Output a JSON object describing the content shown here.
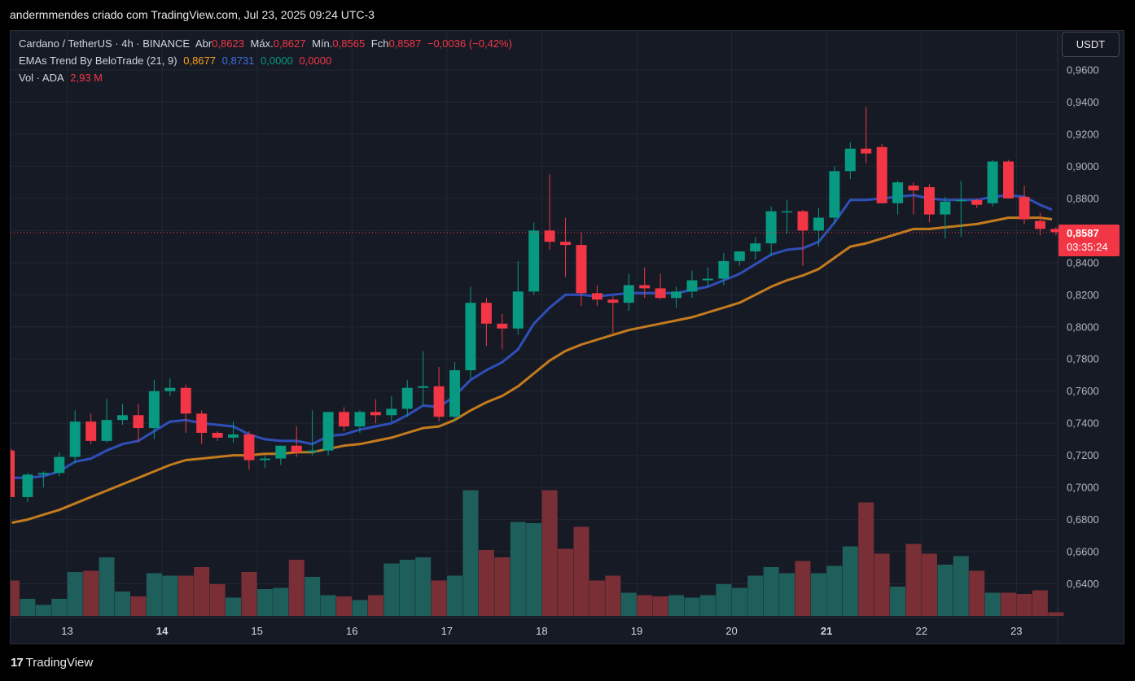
{
  "header": {
    "caption": "andermmendes criado com TradingView.com, Jul 23, 2025 09:24 UTC-3"
  },
  "legend": {
    "symbol": "Cardano / TetherUS · 4h · BINANCE",
    "open_label": "Abr",
    "open": "0,8623",
    "high_label": "Máx.",
    "high": "0,8627",
    "low_label": "Mín.",
    "low": "0,8565",
    "close_label": "Fch",
    "close": "0,8587",
    "change": "−0,0036 (−0,42%)",
    "ema_name": "EMAs Trend By BeloTrade (21, 9)",
    "ema_values": [
      "0,8677",
      "0,8731",
      "0,0000",
      "0,0000"
    ],
    "vol_name": "Vol · ADA",
    "vol_value": "2,93 M"
  },
  "price_axis": {
    "unit": "USDT",
    "last_price": "0,8587",
    "countdown": "03:35:24"
  },
  "brand": {
    "name": "TradingView",
    "logo": "17"
  },
  "colors": {
    "up": "#089981",
    "down": "#f23645",
    "vol_up": "#1f5f5b",
    "vol_down": "#7a2e36",
    "ema_fast": "#2f4fb8",
    "ema_slow": "#c47b1e",
    "ema_v1": "#f7a21b",
    "ema_v2": "#3f6fe0",
    "ema_v3": "#089981",
    "ema_v4": "#f23645",
    "background": "#161a25",
    "grid": "#232733"
  },
  "chart_data": {
    "type": "candlestick",
    "timeframe": "4h",
    "y_ticks": [
      "0,6400",
      "0,6600",
      "0,6800",
      "0,7000",
      "0,7200",
      "0,7400",
      "0,7600",
      "0,7800",
      "0,8000",
      "0,8200",
      "0,8400",
      "0,8600",
      "0,8800",
      "0,9000",
      "0,9200",
      "0,9400",
      "0,9600"
    ],
    "ylim": [
      0.6245,
      0.9665
    ],
    "x_labels": [
      {
        "label": "13",
        "index": 3.5
      },
      {
        "label": "14",
        "index": 9.5
      },
      {
        "label": "15",
        "index": 15.5
      },
      {
        "label": "16",
        "index": 21.5
      },
      {
        "label": "17",
        "index": 27.5
      },
      {
        "label": "18",
        "index": 33.5
      },
      {
        "label": "19",
        "index": 39.5
      },
      {
        "label": "20",
        "index": 45.5
      },
      {
        "label": "21",
        "index": 51.5
      },
      {
        "label": "22",
        "index": 57.5
      },
      {
        "label": "23",
        "index": 63.5
      }
    ],
    "candles": [
      [
        0.723,
        0.724,
        0.694,
        0.694,
        2.9
      ],
      [
        0.694,
        0.709,
        0.691,
        0.708,
        1.4
      ],
      [
        0.708,
        0.71,
        0.7,
        0.709,
        0.9
      ],
      [
        0.709,
        0.722,
        0.707,
        0.719,
        1.4
      ],
      [
        0.719,
        0.748,
        0.715,
        0.741,
        3.6
      ],
      [
        0.741,
        0.746,
        0.727,
        0.729,
        3.7
      ],
      [
        0.729,
        0.755,
        0.728,
        0.742,
        4.8
      ],
      [
        0.742,
        0.752,
        0.739,
        0.745,
        2.0
      ],
      [
        0.745,
        0.752,
        0.728,
        0.737,
        1.6
      ],
      [
        0.737,
        0.767,
        0.73,
        0.76,
        3.5
      ],
      [
        0.76,
        0.768,
        0.757,
        0.762,
        3.3
      ],
      [
        0.762,
        0.764,
        0.734,
        0.746,
        3.3
      ],
      [
        0.746,
        0.748,
        0.727,
        0.734,
        4.0
      ],
      [
        0.734,
        0.735,
        0.729,
        0.731,
        2.6
      ],
      [
        0.731,
        0.741,
        0.728,
        0.733,
        1.5
      ],
      [
        0.733,
        0.735,
        0.711,
        0.717,
        3.6
      ],
      [
        0.717,
        0.72,
        0.712,
        0.718,
        2.2
      ],
      [
        0.718,
        0.726,
        0.714,
        0.726,
        2.3
      ],
      [
        0.726,
        0.738,
        0.719,
        0.722,
        4.6
      ],
      [
        0.722,
        0.748,
        0.72,
        0.723,
        3.2
      ],
      [
        0.723,
        0.747,
        0.72,
        0.747,
        1.7
      ],
      [
        0.747,
        0.75,
        0.735,
        0.738,
        1.6
      ],
      [
        0.738,
        0.748,
        0.734,
        0.747,
        1.3
      ],
      [
        0.747,
        0.755,
        0.74,
        0.745,
        1.7
      ],
      [
        0.745,
        0.757,
        0.741,
        0.749,
        4.3
      ],
      [
        0.749,
        0.767,
        0.744,
        0.762,
        4.6
      ],
      [
        0.762,
        0.785,
        0.751,
        0.763,
        4.8
      ],
      [
        0.763,
        0.775,
        0.741,
        0.744,
        2.9
      ],
      [
        0.744,
        0.778,
        0.741,
        0.773,
        3.3
      ],
      [
        0.773,
        0.825,
        0.768,
        0.815,
        10.3
      ],
      [
        0.815,
        0.818,
        0.788,
        0.802,
        5.4
      ],
      [
        0.802,
        0.808,
        0.786,
        0.799,
        4.8
      ],
      [
        0.799,
        0.841,
        0.795,
        0.822,
        7.7
      ],
      [
        0.822,
        0.865,
        0.82,
        0.86,
        7.6
      ],
      [
        0.86,
        0.895,
        0.848,
        0.853,
        10.3
      ],
      [
        0.853,
        0.868,
        0.831,
        0.851,
        5.5
      ],
      [
        0.851,
        0.859,
        0.813,
        0.821,
        7.3
      ],
      [
        0.821,
        0.826,
        0.813,
        0.817,
        2.9
      ],
      [
        0.817,
        0.819,
        0.796,
        0.815,
        3.3
      ],
      [
        0.815,
        0.833,
        0.81,
        0.826,
        1.9
      ],
      [
        0.826,
        0.837,
        0.818,
        0.824,
        1.7
      ],
      [
        0.824,
        0.833,
        0.817,
        0.818,
        1.6
      ],
      [
        0.818,
        0.825,
        0.812,
        0.822,
        1.7
      ],
      [
        0.822,
        0.835,
        0.818,
        0.829,
        1.5
      ],
      [
        0.829,
        0.837,
        0.825,
        0.83,
        1.7
      ],
      [
        0.83,
        0.846,
        0.826,
        0.841,
        2.6
      ],
      [
        0.841,
        0.847,
        0.838,
        0.847,
        2.3
      ],
      [
        0.847,
        0.856,
        0.842,
        0.852,
        3.3
      ],
      [
        0.852,
        0.875,
        0.844,
        0.872,
        4.0
      ],
      [
        0.872,
        0.879,
        0.858,
        0.872,
        3.5
      ],
      [
        0.872,
        0.873,
        0.838,
        0.86,
        4.5
      ],
      [
        0.86,
        0.874,
        0.85,
        0.868,
        3.5
      ],
      [
        0.868,
        0.9,
        0.864,
        0.897,
        4.1
      ],
      [
        0.897,
        0.915,
        0.892,
        0.911,
        5.7
      ],
      [
        0.911,
        0.937,
        0.902,
        0.908,
        9.3
      ],
      [
        0.912,
        0.914,
        0.877,
        0.877,
        5.1
      ],
      [
        0.877,
        0.891,
        0.87,
        0.89,
        2.4
      ],
      [
        0.888,
        0.89,
        0.87,
        0.885,
        5.9
      ],
      [
        0.887,
        0.889,
        0.865,
        0.87,
        5.1
      ],
      [
        0.87,
        0.881,
        0.855,
        0.878,
        4.2
      ],
      [
        0.879,
        0.891,
        0.856,
        0.879,
        4.9
      ],
      [
        0.879,
        0.88,
        0.874,
        0.876,
        3.7
      ],
      [
        0.877,
        0.904,
        0.875,
        0.903,
        1.9
      ],
      [
        0.903,
        0.904,
        0.88,
        0.88,
        1.9
      ],
      [
        0.881,
        0.888,
        0.864,
        0.867,
        1.8
      ],
      [
        0.866,
        0.871,
        0.857,
        0.861,
        2.1
      ],
      [
        0.861,
        0.862,
        0.857,
        0.859,
        0.3
      ]
    ],
    "series": [
      {
        "name": "EMA 9",
        "color": "#2f4fb8",
        "values": [
          0.706,
          0.706,
          0.707,
          0.71,
          0.716,
          0.718,
          0.723,
          0.727,
          0.729,
          0.735,
          0.741,
          0.742,
          0.74,
          0.739,
          0.738,
          0.733,
          0.73,
          0.729,
          0.729,
          0.727,
          0.732,
          0.733,
          0.736,
          0.738,
          0.74,
          0.745,
          0.751,
          0.75,
          0.757,
          0.767,
          0.773,
          0.778,
          0.786,
          0.802,
          0.812,
          0.82,
          0.82,
          0.819,
          0.82,
          0.821,
          0.821,
          0.821,
          0.821,
          0.823,
          0.825,
          0.829,
          0.833,
          0.839,
          0.845,
          0.848,
          0.849,
          0.853,
          0.865,
          0.879,
          0.879,
          0.88,
          0.881,
          0.882,
          0.88,
          0.879,
          0.879,
          0.879,
          0.881,
          0.882,
          0.881,
          0.876,
          0.873
        ]
      },
      {
        "name": "EMA 21",
        "color": "#c47b1e",
        "values": [
          0.678,
          0.68,
          0.683,
          0.686,
          0.69,
          0.694,
          0.698,
          0.702,
          0.706,
          0.71,
          0.714,
          0.717,
          0.718,
          0.719,
          0.72,
          0.72,
          0.721,
          0.721,
          0.722,
          0.722,
          0.724,
          0.726,
          0.727,
          0.729,
          0.731,
          0.734,
          0.737,
          0.738,
          0.742,
          0.748,
          0.753,
          0.757,
          0.763,
          0.771,
          0.779,
          0.785,
          0.789,
          0.792,
          0.795,
          0.798,
          0.8,
          0.802,
          0.804,
          0.806,
          0.809,
          0.812,
          0.815,
          0.82,
          0.825,
          0.829,
          0.832,
          0.836,
          0.843,
          0.85,
          0.852,
          0.855,
          0.858,
          0.861,
          0.861,
          0.862,
          0.863,
          0.864,
          0.866,
          0.868,
          0.868,
          0.868,
          0.867
        ]
      }
    ],
    "volume_ylim": [
      0,
      12
    ]
  }
}
